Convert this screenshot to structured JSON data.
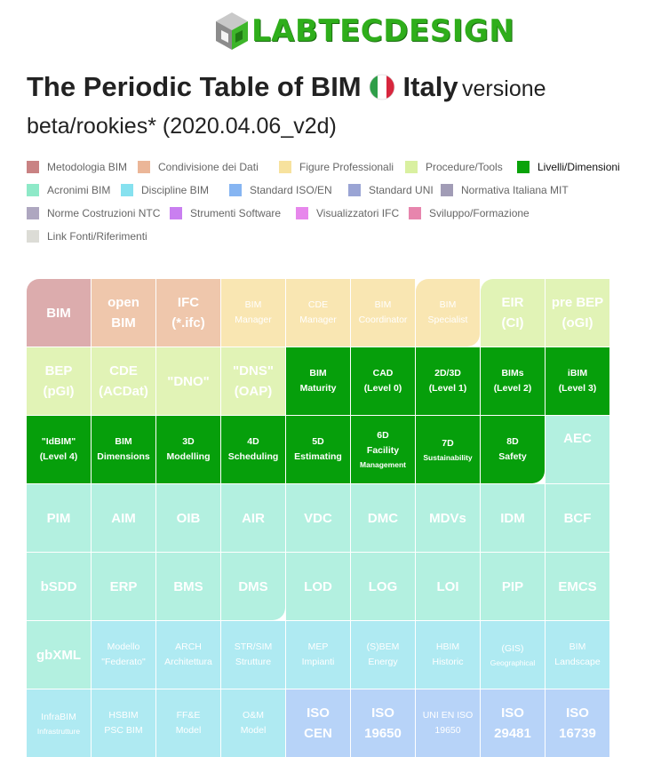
{
  "logo": {
    "text": "LABTECDESIGN",
    "icon": "cube-logo-icon"
  },
  "title": {
    "main": "The Periodic Table of BIM",
    "country": "Italy",
    "version_word": "versione",
    "line2": "beta/rookies* (2020.04.06_v2d)",
    "flag_colors": [
      "#2e9e48",
      "#ffffff",
      "#d7263d"
    ]
  },
  "legend": [
    {
      "label": "Metodologia BIM",
      "color": "#c98283"
    },
    {
      "label": "Condivisione dei Dati",
      "color": "#ebb698"
    },
    {
      "label": "Figure Professionali",
      "color": "#f7e29e"
    },
    {
      "label": "Procedure/Tools",
      "color": "#d9f0a0"
    },
    {
      "label": "Livelli/Dimensioni",
      "color": "#0aa30a",
      "active": true
    },
    {
      "label": "Acronimi BIM",
      "color": "#8ee9c8"
    },
    {
      "label": "Discipline BIM",
      "color": "#86e1ef"
    },
    {
      "label": "Standard ISO/EN",
      "color": "#86b5f2"
    },
    {
      "label": "Standard UNI",
      "color": "#9aa4d4"
    },
    {
      "label": "Normativa Italiana MIT",
      "color": "#a19cb6"
    },
    {
      "label": "Norme Costruzioni NTC",
      "color": "#aea7c0"
    },
    {
      "label": "Strumenti Software",
      "color": "#c97ff0"
    },
    {
      "label": "Visualizzatori IFC",
      "color": "#e787ec"
    },
    {
      "label": "Sviluppo/Formazione",
      "color": "#e785ad"
    },
    {
      "label": "Link Fonti/Riferimenti",
      "color": "#dcdcd6"
    }
  ],
  "categories": {
    "metodologia": "#dcacad",
    "condivisione": "#efc7ac",
    "figure": "#f9e6b2",
    "procedure": "#e1f3b6",
    "livelli": "#069f0b",
    "acronimi": "#b3f0e0",
    "discipline": "#afeaf2",
    "iso": "#b7d3f8"
  },
  "table": [
    [
      {
        "l1": "BIM",
        "cat": "metodologia",
        "size": "lg"
      },
      {
        "l1": "open",
        "l2": "BIM",
        "cat": "condivisione",
        "size": "lg"
      },
      {
        "l1": "IFC",
        "l2": "(*.ifc)",
        "cat": "condivisione",
        "size": "lg"
      },
      {
        "l1": "BIM",
        "l2": "Manager",
        "cat": "figure",
        "size": "md"
      },
      {
        "l1": "CDE",
        "l2": "Manager",
        "cat": "figure",
        "size": "md"
      },
      {
        "l1": "BIM",
        "l2": "Coordinator",
        "cat": "figure",
        "size": "md"
      },
      {
        "l1": "BIM",
        "l2": "Specialist",
        "cat": "figure",
        "size": "md"
      },
      {
        "l1": "EIR",
        "l2": "(CI)",
        "cat": "procedure",
        "size": "lg"
      },
      {
        "l1": "pre BEP",
        "l2": "(oGI)",
        "cat": "procedure",
        "size": "lg"
      }
    ],
    [
      {
        "l1": "BEP",
        "l2": "(pGI)",
        "cat": "procedure",
        "size": "lg"
      },
      {
        "l1": "CDE",
        "l2": "(ACDat)",
        "cat": "procedure",
        "size": "lg"
      },
      {
        "l1": "\"DNO\"",
        "cat": "procedure",
        "size": "lg"
      },
      {
        "l1": "\"DNS\"",
        "l2": "(OAP)",
        "cat": "procedure",
        "size": "lg"
      },
      {
        "l1": "BIM",
        "l2": "Maturity",
        "cat": "livelli",
        "size": "dark"
      },
      {
        "l1": "CAD",
        "l2": "(Level 0)",
        "cat": "livelli",
        "size": "dark"
      },
      {
        "l1": "2D/3D",
        "l2": "(Level 1)",
        "cat": "livelli",
        "size": "dark"
      },
      {
        "l1": "BIMs",
        "l2": "(Level 2)",
        "cat": "livelli",
        "size": "dark"
      },
      {
        "l1": "iBIM",
        "l2": "(Level 3)",
        "cat": "livelli",
        "size": "dark"
      }
    ],
    [
      {
        "l1": "\"IdBIM\"",
        "l2": "(Level 4)",
        "cat": "livelli",
        "size": "dark"
      },
      {
        "l1": "BIM",
        "l2": "Dimensions",
        "cat": "livelli",
        "size": "dark"
      },
      {
        "l1": "3D",
        "l2": "Modelling",
        "cat": "livelli",
        "size": "dark"
      },
      {
        "l1": "4D",
        "l2": "Scheduling",
        "cat": "livelli",
        "size": "dark"
      },
      {
        "l1": "5D",
        "l2": "Estimating",
        "cat": "livelli",
        "size": "dark"
      },
      {
        "l1": "6D",
        "l2": "Facility",
        "l3": "Management",
        "cat": "livelli",
        "size": "dark"
      },
      {
        "l1": "7D",
        "l2": "Sustainability",
        "cat": "livelli",
        "size": "dark",
        "small2": true
      },
      {
        "l1": "8D",
        "l2": "Safety",
        "cat": "livelli",
        "size": "dark"
      },
      {
        "l1": "AEC",
        "cat": "acronimi",
        "size": "lg",
        "top": true
      }
    ],
    [
      {
        "l1": "PIM",
        "cat": "acronimi",
        "size": "lg"
      },
      {
        "l1": "AIM",
        "cat": "acronimi",
        "size": "lg"
      },
      {
        "l1": "OIB",
        "cat": "acronimi",
        "size": "lg"
      },
      {
        "l1": "AIR",
        "cat": "acronimi",
        "size": "lg"
      },
      {
        "l1": "VDC",
        "cat": "acronimi",
        "size": "lg"
      },
      {
        "l1": "DMC",
        "cat": "acronimi",
        "size": "lg"
      },
      {
        "l1": "MDVs",
        "cat": "acronimi",
        "size": "lg"
      },
      {
        "l1": "IDM",
        "cat": "acronimi",
        "size": "lg"
      },
      {
        "l1": "BCF",
        "cat": "acronimi",
        "size": "lg"
      }
    ],
    [
      {
        "l1": "bSDD",
        "cat": "acronimi",
        "size": "lg"
      },
      {
        "l1": "ERP",
        "cat": "acronimi",
        "size": "lg"
      },
      {
        "l1": "BMS",
        "cat": "acronimi",
        "size": "lg"
      },
      {
        "l1": "DMS",
        "cat": "acronimi",
        "size": "lg"
      },
      {
        "l1": "LOD",
        "cat": "acronimi",
        "size": "lg"
      },
      {
        "l1": "LOG",
        "cat": "acronimi",
        "size": "lg"
      },
      {
        "l1": "LOI",
        "cat": "acronimi",
        "size": "lg"
      },
      {
        "l1": "PIP",
        "cat": "acronimi",
        "size": "lg"
      },
      {
        "l1": "EMCS",
        "cat": "acronimi",
        "size": "lg"
      }
    ],
    [
      {
        "l1": "gbXML",
        "cat": "acronimi",
        "size": "lg"
      },
      {
        "l1": "Modello",
        "l2": "\"Federato\"",
        "cat": "discipline",
        "size": "md"
      },
      {
        "l1": "ARCH",
        "l2": "Architettura",
        "cat": "discipline",
        "size": "md"
      },
      {
        "l1": "STR/SIM",
        "l2": "Strutture",
        "cat": "discipline",
        "size": "md"
      },
      {
        "l1": "MEP",
        "l2": "Impianti",
        "cat": "discipline",
        "size": "md"
      },
      {
        "l1": "(S)BEM",
        "l2": "Energy",
        "cat": "discipline",
        "size": "md"
      },
      {
        "l1": "HBIM",
        "l2": "Historic",
        "cat": "discipline",
        "size": "md"
      },
      {
        "l1": "(GIS)",
        "l2": "Geographical",
        "cat": "discipline",
        "size": "md",
        "small2": true
      },
      {
        "l1": "BIM",
        "l2": "Landscape",
        "cat": "discipline",
        "size": "md"
      }
    ],
    [
      {
        "l1": "InfraBIM",
        "l2": "Infrastrutture",
        "cat": "discipline",
        "size": "md",
        "small2": true
      },
      {
        "l1": "HSBIM",
        "l2": "PSC BIM",
        "cat": "discipline",
        "size": "md"
      },
      {
        "l1": "FF&E",
        "l2": "Model",
        "cat": "discipline",
        "size": "md"
      },
      {
        "l1": "O&M",
        "l2": "Model",
        "cat": "discipline",
        "size": "md"
      },
      {
        "l1": "ISO",
        "l2": "CEN",
        "cat": "iso",
        "size": "lg"
      },
      {
        "l1": "ISO",
        "l2": "19650",
        "cat": "iso",
        "size": "lg"
      },
      {
        "l1": "UNI EN ISO",
        "l2": "19650",
        "cat": "iso",
        "size": "md"
      },
      {
        "l1": "ISO",
        "l2": "29481",
        "cat": "iso",
        "size": "lg"
      },
      {
        "l1": "ISO",
        "l2": "16739",
        "cat": "iso",
        "size": "lg"
      }
    ]
  ]
}
